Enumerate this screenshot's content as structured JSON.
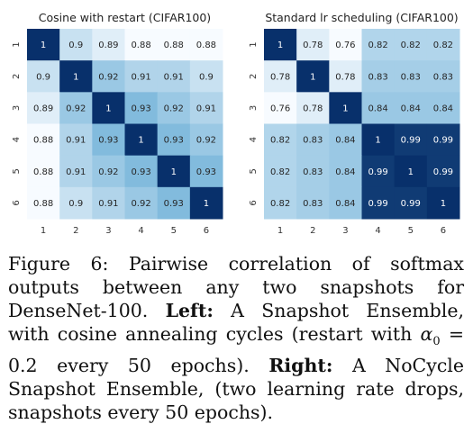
{
  "chart_data": [
    {
      "type": "heatmap",
      "title": "Cosine with restart (CIFAR100)",
      "x_tick_labels": [
        "1",
        "2",
        "3",
        "4",
        "5",
        "6"
      ],
      "y_tick_labels": [
        "1",
        "2",
        "3",
        "4",
        "5",
        "6"
      ],
      "values": [
        [
          1,
          0.9,
          0.89,
          0.88,
          0.88,
          0.88
        ],
        [
          0.9,
          1,
          0.92,
          0.91,
          0.91,
          0.9
        ],
        [
          0.89,
          0.92,
          1,
          0.93,
          0.92,
          0.91
        ],
        [
          0.88,
          0.91,
          0.93,
          1,
          0.93,
          0.92
        ],
        [
          0.88,
          0.91,
          0.92,
          0.93,
          1,
          0.93
        ],
        [
          0.88,
          0.9,
          0.91,
          0.92,
          0.93,
          1
        ]
      ],
      "cell_labels": [
        [
          "1",
          "0.9",
          "0.89",
          "0.88",
          "0.88",
          "0.88"
        ],
        [
          "0.9",
          "1",
          "0.92",
          "0.91",
          "0.91",
          "0.9"
        ],
        [
          "0.89",
          "0.92",
          "1",
          "0.93",
          "0.92",
          "0.91"
        ],
        [
          "0.88",
          "0.91",
          "0.93",
          "1",
          "0.93",
          "0.92"
        ],
        [
          "0.88",
          "0.91",
          "0.92",
          "0.93",
          "1",
          "0.93"
        ],
        [
          "0.88",
          "0.9",
          "0.91",
          "0.92",
          "0.93",
          "1"
        ]
      ],
      "color_range": [
        0.88,
        1
      ],
      "colormap": "blues"
    },
    {
      "type": "heatmap",
      "title": "Standard lr scheduling (CIFAR100)",
      "x_tick_labels": [
        "1",
        "2",
        "3",
        "4",
        "5",
        "6"
      ],
      "y_tick_labels": [
        "1",
        "2",
        "3",
        "4",
        "5",
        "6"
      ],
      "values": [
        [
          1,
          0.78,
          0.76,
          0.82,
          0.82,
          0.82
        ],
        [
          0.78,
          1,
          0.78,
          0.83,
          0.83,
          0.83
        ],
        [
          0.76,
          0.78,
          1,
          0.84,
          0.84,
          0.84
        ],
        [
          0.82,
          0.83,
          0.84,
          1,
          0.99,
          0.99
        ],
        [
          0.82,
          0.83,
          0.84,
          0.99,
          1,
          0.99
        ],
        [
          0.82,
          0.83,
          0.84,
          0.99,
          0.99,
          1
        ]
      ],
      "cell_labels": [
        [
          "1",
          "0.78",
          "0.76",
          "0.82",
          "0.82",
          "0.82"
        ],
        [
          "0.78",
          "1",
          "0.78",
          "0.83",
          "0.83",
          "0.83"
        ],
        [
          "0.76",
          "0.78",
          "1",
          "0.84",
          "0.84",
          "0.84"
        ],
        [
          "0.82",
          "0.83",
          "0.84",
          "1",
          "0.99",
          "0.99"
        ],
        [
          "0.82",
          "0.83",
          "0.84",
          "0.99",
          "1",
          "0.99"
        ],
        [
          "0.82",
          "0.83",
          "0.84",
          "0.99",
          "0.99",
          "1"
        ]
      ],
      "color_range": [
        0.76,
        1
      ],
      "colormap": "blues"
    }
  ],
  "caption": {
    "figure_label": "Figure 6:",
    "text_1": "Pairwise correlation of softmax outputs between any two snapshots for DenseNet-100.",
    "left_label": "Left:",
    "text_2": "A Snapshot Ensemble, with cosine annealing cycles (restart with",
    "alpha_symbol": "α",
    "alpha_sub": "0",
    "text_3": "= 0.2 every 50 epochs).",
    "right_label": "Right:",
    "text_4": "A NoCycle Snapshot Ensemble, (two learning rate drops, snapshots every 50 epochs)."
  },
  "colors": {
    "heat_low": "#f7fbff",
    "heat_mid": "#6baed6",
    "heat_high": "#08306b"
  }
}
